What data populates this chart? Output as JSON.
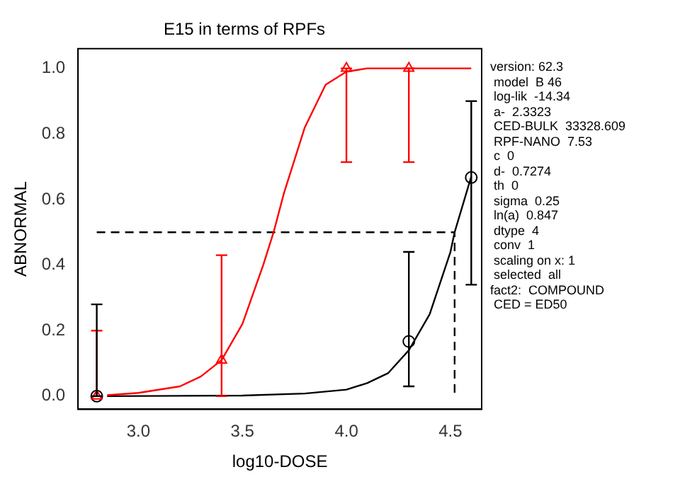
{
  "chart_data": {
    "type": "scatter",
    "title": "E15 in terms of RPFs",
    "xlabel": "log10-DOSE",
    "ylabel": "ABNORMAL",
    "xlim": [
      2.71,
      4.65
    ],
    "ylim": [
      -0.04,
      1.06
    ],
    "xticks": [
      {
        "value": 3,
        "label": "3.0"
      },
      {
        "value": 3.5,
        "label": "3.5"
      },
      {
        "value": 4,
        "label": "4.0"
      },
      {
        "value": 4.5,
        "label": "4.5"
      }
    ],
    "yticks": [
      {
        "value": 0,
        "label": "0.0"
      },
      {
        "value": 0.2,
        "label": "0.2"
      },
      {
        "value": 0.4,
        "label": "0.4"
      },
      {
        "value": 0.6,
        "label": "0.6"
      },
      {
        "value": 0.8,
        "label": "0.8"
      },
      {
        "value": 1,
        "label": "1.0"
      }
    ],
    "grid": false,
    "series": [
      {
        "type": "line",
        "color": "#ff0000",
        "marker": "none",
        "x": [
          2.85,
          3.0,
          3.2,
          3.3,
          3.4,
          3.5,
          3.6,
          3.65,
          3.7,
          3.8,
          3.9,
          4.0,
          4.1,
          4.6
        ],
        "values": [
          0.003,
          0.01,
          0.03,
          0.06,
          0.11,
          0.22,
          0.4,
          0.5,
          0.62,
          0.82,
          0.95,
          0.99,
          1.0,
          1.0
        ]
      },
      {
        "type": "line",
        "color": "#000000",
        "marker": "none",
        "x": [
          2.85,
          3.5,
          3.8,
          4.0,
          4.1,
          4.2,
          4.3,
          4.4,
          4.5,
          4.52,
          4.6
        ],
        "values": [
          0,
          0.002,
          0.008,
          0.02,
          0.04,
          0.07,
          0.14,
          0.25,
          0.44,
          0.5,
          0.67
        ]
      },
      {
        "type": "line",
        "color": "#000000",
        "marker": "none",
        "line_style": "dashed",
        "x": [
          2.8,
          4.52,
          4.52
        ],
        "values": [
          0.5,
          0.5,
          0
        ]
      },
      {
        "type": "scatter",
        "color": "#ff0000",
        "marker": "triangle",
        "x": [
          2.8,
          3.4,
          4.0,
          4.3
        ],
        "values": [
          0,
          0.11,
          1,
          1
        ],
        "errors": [
          [
            0,
            0.2
          ],
          [
            0,
            0.43
          ],
          [
            0.714,
            1
          ],
          [
            0.714,
            1
          ]
        ]
      },
      {
        "type": "scatter",
        "color": "#000000",
        "marker": "circle",
        "x": [
          2.8,
          4.3,
          4.6
        ],
        "values": [
          0,
          0.167,
          0.667
        ],
        "errors": [
          [
            0,
            0.28
          ],
          [
            0.03,
            0.44
          ],
          [
            0.34,
            0.9
          ]
        ]
      }
    ],
    "annotations": [
      "version: 62.3",
      " model  B 46",
      " log-lik  -14.34",
      " a-  2.3323",
      " CED-BULK  33328.609",
      " RPF-NANO  7.53",
      " c  0",
      " d-  0.7274",
      " th  0",
      " sigma  0.25",
      " ln(a)  0.847",
      " dtype  4",
      " conv  1",
      " scaling on x: 1",
      " selected  all",
      "fact2:  COMPOUND",
      " CED = ED50"
    ]
  }
}
